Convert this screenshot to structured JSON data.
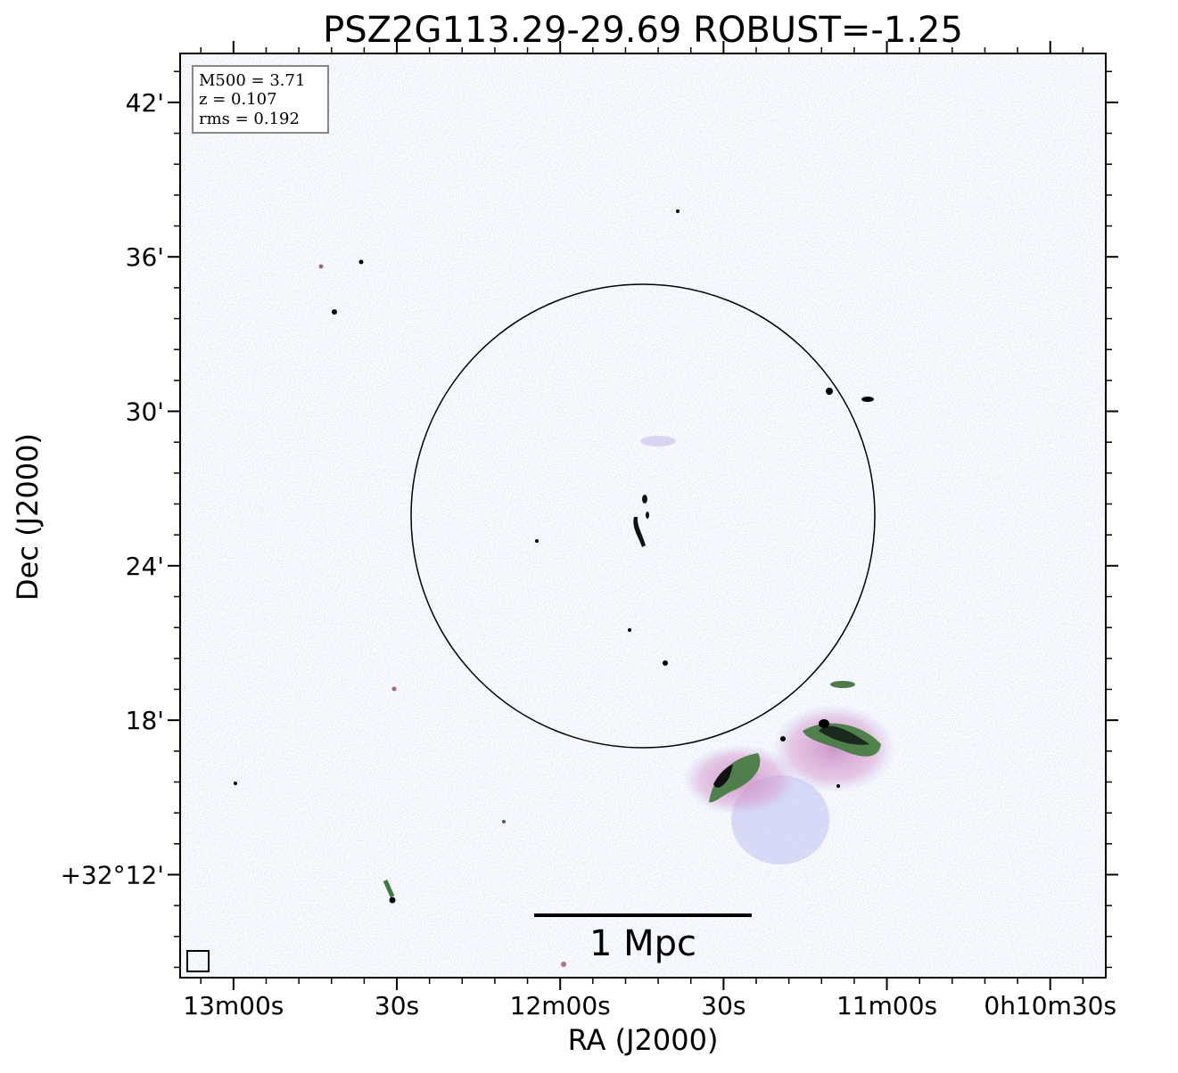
{
  "chart_data": {
    "type": "image",
    "title": "PSZ2G113.29-29.69 ROBUST=-1.25",
    "xlabel": "RA (J2000)",
    "ylabel": "Dec (J2000)",
    "annotations": [
      "M500 = 3.71",
      "z = 0.107",
      "rms = 0.192"
    ],
    "scalebar_label": "1 Mpc",
    "xlim": [
      789.8,
      619.8
    ],
    "ylim": [
      8.0,
      43.9
    ],
    "xticks": [
      {
        "value": 780,
        "label": "13m00s"
      },
      {
        "value": 750,
        "label": "30s"
      },
      {
        "value": 720,
        "label": "12m00s"
      },
      {
        "value": 690,
        "label": "30s"
      },
      {
        "value": 660,
        "label": "11m00s"
      },
      {
        "value": 630,
        "label": "0h10m30s"
      }
    ],
    "yticks": [
      {
        "value": 12,
        "label": "+32°12'"
      },
      {
        "value": 18,
        "label": "18'"
      },
      {
        "value": 24,
        "label": "24'"
      },
      {
        "value": 30,
        "label": "30'"
      },
      {
        "value": 36,
        "label": "36'"
      },
      {
        "value": 42,
        "label": "42'"
      }
    ]
  }
}
